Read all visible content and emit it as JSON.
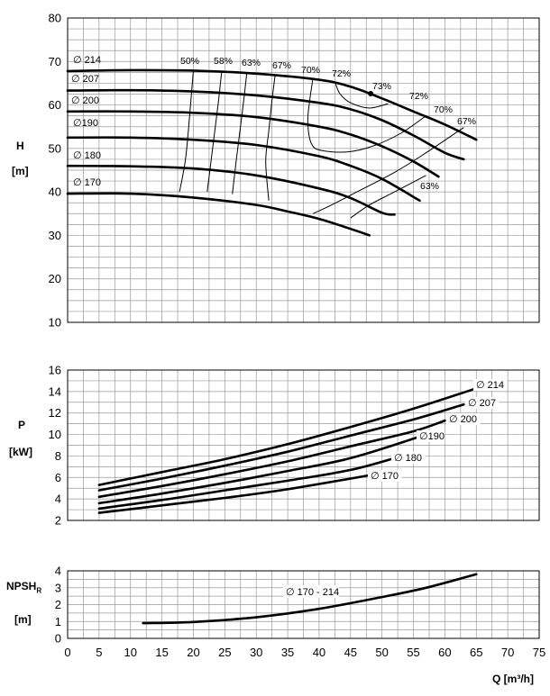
{
  "chart_data": [
    {
      "type": "line",
      "panel": "head",
      "ylabel_symbol": "H",
      "ylabel_unit": "[m]",
      "xlim": [
        0,
        75
      ],
      "ylim": [
        10,
        80
      ],
      "yticks": [
        10,
        20,
        30,
        40,
        50,
        60,
        70,
        80
      ],
      "grid": true,
      "series": [
        {
          "name": "∅ 214",
          "points": [
            [
              0,
              67.8
            ],
            [
              10,
              68
            ],
            [
              20,
              67.9
            ],
            [
              30,
              67.2
            ],
            [
              40,
              65.8
            ],
            [
              45,
              64.2
            ],
            [
              50,
              61.5
            ],
            [
              55,
              58.5
            ],
            [
              60,
              55.5
            ],
            [
              65,
              52
            ]
          ]
        },
        {
          "name": "∅ 207",
          "points": [
            [
              0,
              63.3
            ],
            [
              10,
              63.4
            ],
            [
              20,
              63.1
            ],
            [
              30,
              62.2
            ],
            [
              40,
              60.5
            ],
            [
              45,
              59
            ],
            [
              50,
              56.5
            ],
            [
              55,
              53
            ],
            [
              60,
              49
            ],
            [
              63,
              47.5
            ]
          ]
        },
        {
          "name": "∅ 200",
          "points": [
            [
              0,
              58.5
            ],
            [
              10,
              58.5
            ],
            [
              20,
              58.2
            ],
            [
              30,
              57.2
            ],
            [
              40,
              55
            ],
            [
              45,
              53.2
            ],
            [
              50,
              50.5
            ],
            [
              55,
              47
            ],
            [
              59,
              43.5
            ]
          ]
        },
        {
          "name": "∅190",
          "points": [
            [
              0,
              52.5
            ],
            [
              10,
              52.5
            ],
            [
              20,
              52
            ],
            [
              30,
              50.8
            ],
            [
              40,
              48.2
            ],
            [
              45,
              46
            ],
            [
              50,
              43
            ],
            [
              56,
              38
            ]
          ]
        },
        {
          "name": "∅ 180",
          "points": [
            [
              0,
              46
            ],
            [
              10,
              45.9
            ],
            [
              20,
              45.4
            ],
            [
              30,
              43.8
            ],
            [
              40,
              40.8
            ],
            [
              45,
              38.6
            ],
            [
              50,
              35.2
            ],
            [
              52,
              34.8
            ]
          ]
        },
        {
          "name": "∅ 170",
          "points": [
            [
              0,
              39.6
            ],
            [
              10,
              39.6
            ],
            [
              20,
              38.7
            ],
            [
              30,
              37
            ],
            [
              35,
              35.5
            ],
            [
              40,
              33.8
            ],
            [
              45,
              31.5
            ],
            [
              48,
              30
            ]
          ]
        }
      ],
      "efficiency_labels": [
        "50%",
        "58%",
        "63%",
        "67%",
        "70%",
        "72%",
        "73%",
        "72%",
        "70%",
        "67%",
        "63%"
      ],
      "efficiency_curves": [
        {
          "label": "50%",
          "points": [
            [
              20,
              67.9
            ],
            [
              19.6,
              61
            ],
            [
              19.2,
              54
            ],
            [
              18.7,
              47
            ],
            [
              17.8,
              40
            ]
          ]
        },
        {
          "label": "58%",
          "points": [
            [
              24.5,
              67.6
            ],
            [
              24,
              61
            ],
            [
              23.4,
              54
            ],
            [
              22.8,
              47
            ],
            [
              22.2,
              40
            ]
          ]
        },
        {
          "label": "63%",
          "points": [
            [
              28.5,
              67.3
            ],
            [
              28,
              61
            ],
            [
              27.4,
              54
            ],
            [
              26.8,
              47
            ],
            [
              26.2,
              39.5
            ]
          ]
        },
        {
          "label": "67%",
          "points": [
            [
              33,
              66.8
            ],
            [
              32.5,
              61
            ],
            [
              32,
              54
            ],
            [
              31.5,
              47
            ],
            [
              32,
              38
            ]
          ]
        },
        {
          "label": "70%",
          "points": [
            [
              39,
              66
            ],
            [
              38.5,
              61
            ],
            [
              38.2,
              56
            ],
            [
              38.8,
              51
            ],
            [
              40.5,
              49.5
            ],
            [
              44.5,
              49.2
            ],
            [
              48.5,
              50.5
            ],
            [
              53,
              53.5
            ],
            [
              57,
              57.5
            ]
          ]
        },
        {
          "label": "72%",
          "points": [
            [
              42.5,
              65.4
            ],
            [
              43.3,
              62.6
            ],
            [
              45,
              60.5
            ],
            [
              48,
              59.3
            ],
            [
              51,
              60.3
            ]
          ]
        },
        {
          "label": "right-67%",
          "points": [
            [
              63,
              54.8
            ],
            [
              57,
              49
            ],
            [
              52,
              44.5
            ],
            [
              46,
              40
            ],
            [
              42,
              37
            ],
            [
              39,
              35
            ]
          ]
        },
        {
          "label": "right-63%",
          "points": [
            [
              57,
              43.8
            ],
            [
              52,
              40
            ],
            [
              48,
              37
            ],
            [
              45,
              34
            ]
          ]
        }
      ],
      "bep_point": [
        48.2,
        62.6
      ]
    },
    {
      "type": "line",
      "panel": "power",
      "ylabel_symbol": "P",
      "ylabel_unit": "[kW]",
      "xlim": [
        0,
        75
      ],
      "ylim": [
        2,
        16
      ],
      "yticks": [
        2,
        4,
        6,
        8,
        10,
        12,
        14,
        16
      ],
      "grid": true,
      "series": [
        {
          "name": "∅ 214",
          "points": [
            [
              5,
              5.3
            ],
            [
              15,
              6.5
            ],
            [
              25,
              7.7
            ],
            [
              35,
              9.1
            ],
            [
              45,
              10.7
            ],
            [
              55,
              12.4
            ],
            [
              65,
              14.3
            ]
          ]
        },
        {
          "name": "∅ 207",
          "points": [
            [
              5,
              4.8
            ],
            [
              15,
              5.9
            ],
            [
              25,
              7.1
            ],
            [
              35,
              8.4
            ],
            [
              45,
              9.9
            ],
            [
              55,
              11.4
            ],
            [
              63,
              12.8
            ]
          ]
        },
        {
          "name": "∅ 200",
          "points": [
            [
              5,
              4.2
            ],
            [
              15,
              5.2
            ],
            [
              25,
              6.3
            ],
            [
              35,
              7.5
            ],
            [
              45,
              8.9
            ],
            [
              55,
              10.3
            ],
            [
              60,
              11.3
            ]
          ]
        },
        {
          "name": "∅190",
          "points": [
            [
              5,
              3.6
            ],
            [
              15,
              4.5
            ],
            [
              25,
              5.5
            ],
            [
              35,
              6.6
            ],
            [
              45,
              7.8
            ],
            [
              56,
              9.8
            ]
          ]
        },
        {
          "name": "∅ 180",
          "points": [
            [
              5,
              3.1
            ],
            [
              15,
              3.9
            ],
            [
              25,
              4.8
            ],
            [
              35,
              5.7
            ],
            [
              45,
              6.7
            ],
            [
              52,
              7.8
            ]
          ]
        },
        {
          "name": "∅ 170",
          "points": [
            [
              5,
              2.7
            ],
            [
              15,
              3.4
            ],
            [
              25,
              4.1
            ],
            [
              35,
              4.9
            ],
            [
              48,
              6.2
            ]
          ]
        }
      ]
    },
    {
      "type": "line",
      "panel": "npsh",
      "ylabel_symbol": "NPSH",
      "ylabel_subscript": "R",
      "ylabel_unit": "[m]",
      "xlabel": "Q [m³/h]",
      "xlim": [
        0,
        75
      ],
      "ylim": [
        0,
        4
      ],
      "xticks": [
        0,
        5,
        10,
        15,
        20,
        25,
        30,
        35,
        40,
        45,
        50,
        55,
        60,
        65,
        70,
        75
      ],
      "yticks": [
        0,
        1,
        2,
        3,
        4
      ],
      "grid": true,
      "series": [
        {
          "name": "∅ 170 - 214",
          "points": [
            [
              12,
              0.9
            ],
            [
              20,
              0.97
            ],
            [
              30,
              1.25
            ],
            [
              40,
              1.75
            ],
            [
              50,
              2.45
            ],
            [
              57,
              3.0
            ],
            [
              65,
              3.8
            ]
          ]
        }
      ]
    }
  ],
  "labels": {
    "h_symbol": "H",
    "h_unit": "[m]",
    "p_symbol": "P",
    "p_unit": "[kW]",
    "npsh_symbol": "NPSH",
    "npsh_sub": "R",
    "npsh_unit": "[m]",
    "q_label": "Q [m³/h]"
  }
}
